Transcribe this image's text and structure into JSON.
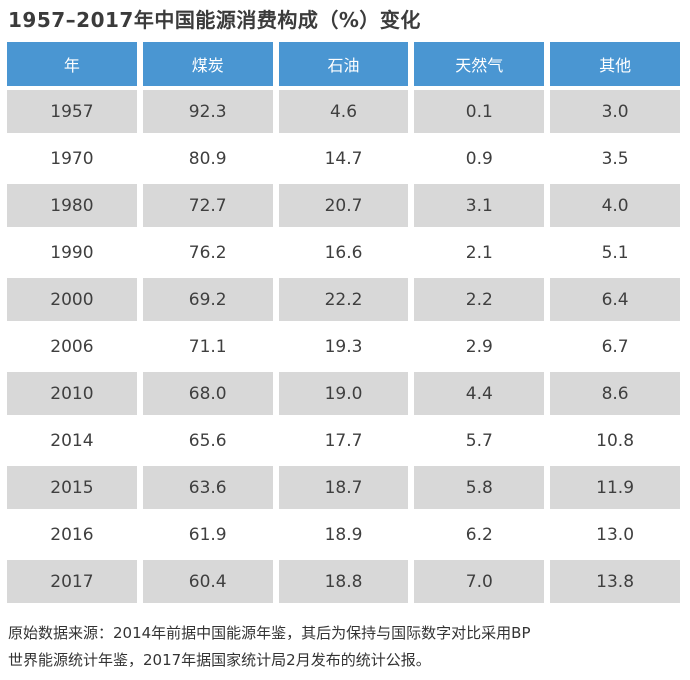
{
  "title": "1957–2017年中国能源消费构成（%）变化",
  "colors": {
    "header_bg": "#4a96d2",
    "header_text": "#ffffff",
    "row_alt_bg": "#d8d8d8",
    "row_bg": "#ffffff",
    "title_text": "#3b3b3b",
    "cell_text": "#3f3f3f",
    "footer_text": "#333333"
  },
  "chart_data": {
    "type": "table",
    "title": "1957–2017年中国能源消费构成（%）变化",
    "unit": "%",
    "columns": [
      "年",
      "煤炭",
      "石油",
      "天然气",
      "其他"
    ],
    "rows": [
      [
        "1957",
        "92.3",
        "4.6",
        "0.1",
        "3.0"
      ],
      [
        "1970",
        "80.9",
        "14.7",
        "0.9",
        "3.5"
      ],
      [
        "1980",
        "72.7",
        "20.7",
        "3.1",
        "4.0"
      ],
      [
        "1990",
        "76.2",
        "16.6",
        "2.1",
        "5.1"
      ],
      [
        "2000",
        "69.2",
        "22.2",
        "2.2",
        "6.4"
      ],
      [
        "2006",
        "71.1",
        "19.3",
        "2.9",
        "6.7"
      ],
      [
        "2010",
        "68.0",
        "19.0",
        "4.4",
        "8.6"
      ],
      [
        "2014",
        "65.6",
        "17.7",
        "5.7",
        "10.8"
      ],
      [
        "2015",
        "63.6",
        "18.7",
        "5.8",
        "11.9"
      ],
      [
        "2016",
        "61.9",
        "18.9",
        "6.2",
        "13.0"
      ],
      [
        "2017",
        "60.4",
        "18.8",
        "7.0",
        "13.8"
      ]
    ]
  },
  "footer": {
    "lines": [
      "原始数据来源：2014年前据中国能源年鉴，其后为保持与国际数字对比采用BP",
      "世界能源统计年鉴，2017年据国家统计局2月发布的统计公报。"
    ]
  }
}
